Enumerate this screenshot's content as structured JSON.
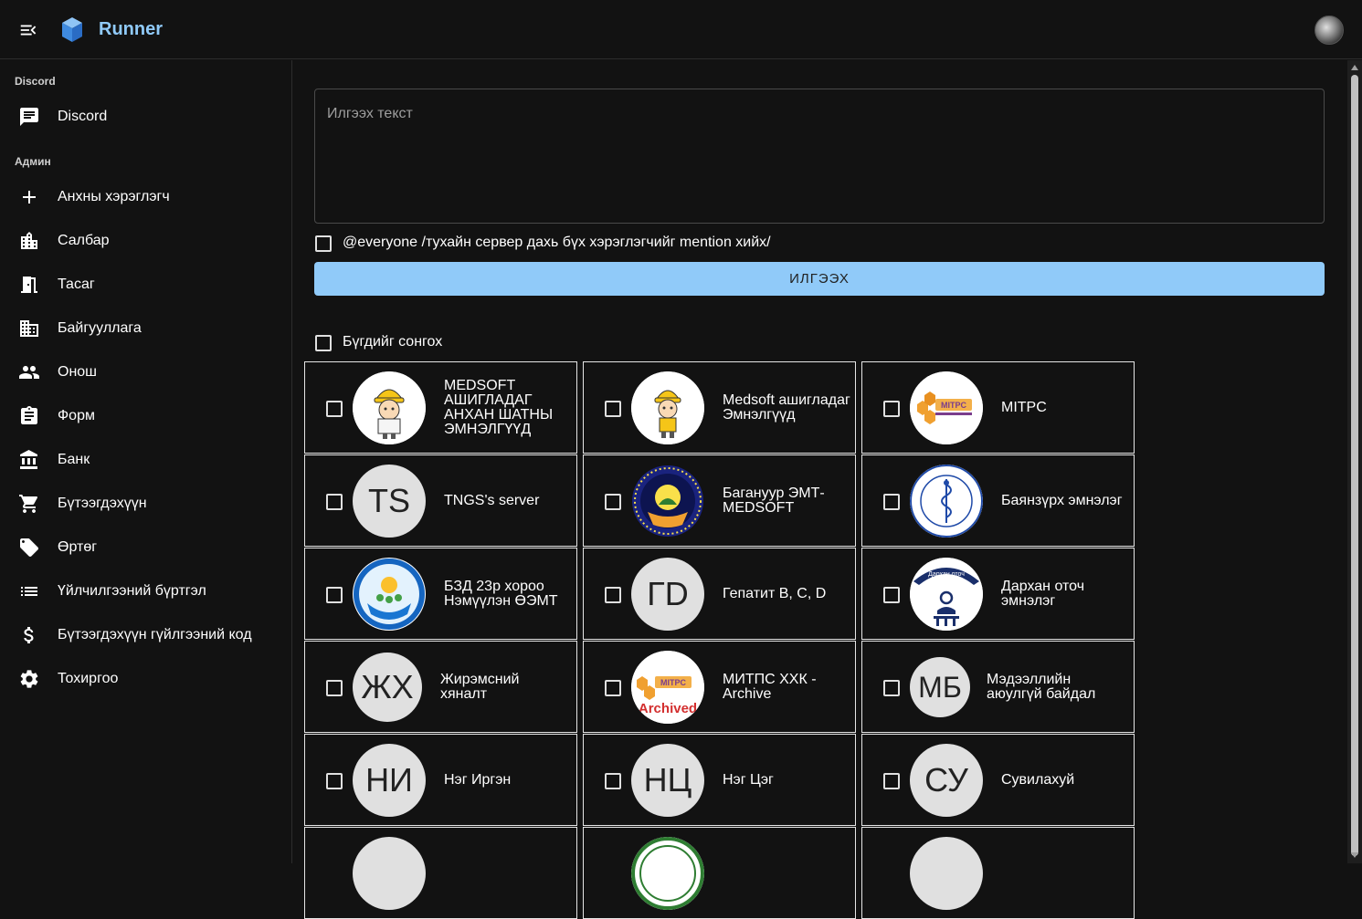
{
  "app": {
    "title": "Runner"
  },
  "sidebar": {
    "sections": [
      {
        "header": "Discord",
        "items": [
          {
            "label": "Discord",
            "icon": "chat-icon"
          }
        ]
      },
      {
        "header": "Админ",
        "items": [
          {
            "label": "Анхны хэрэглэгч",
            "icon": "plus-icon"
          },
          {
            "label": "Салбар",
            "icon": "building-icon"
          },
          {
            "label": "Тасаг",
            "icon": "door-icon"
          },
          {
            "label": "Байгууллага",
            "icon": "domain-icon"
          },
          {
            "label": "Онош",
            "icon": "people-icon"
          },
          {
            "label": "Форм",
            "icon": "clipboard-icon"
          },
          {
            "label": "Банк",
            "icon": "bank-icon"
          },
          {
            "label": "Бүтээгдэхүүн",
            "icon": "cart-icon"
          },
          {
            "label": "Өртөг",
            "icon": "tag-icon"
          },
          {
            "label": "Үйлчилгээний бүртгэл",
            "icon": "list-icon"
          },
          {
            "label": "Бүтээгдэхүүн гүйлгээний код",
            "icon": "dollar-icon"
          },
          {
            "label": "Тохиргоо",
            "icon": "gear-icon"
          }
        ]
      }
    ]
  },
  "main": {
    "message_placeholder": "Илгээх текст",
    "mention_label": "@everyone /тухайн сервер дахь бүх хэрэглэгчийг mention хийх/",
    "send_label": "ИЛГЭЭХ",
    "select_all_label": "Бүгдийг сонгох",
    "servers": [
      {
        "name": "MEDSOFT АШИГЛАДАГ АНХАН ШАТНЫ ЭМНЭЛГҮҮД",
        "avatar": "worker-logo"
      },
      {
        "name": "Medsoft ашигладаг Эмнэлгүүд",
        "avatar": "worker-logo"
      },
      {
        "name": "MITPC",
        "avatar": "mitpc-logo"
      },
      {
        "name": "TNGS's server",
        "initials": "TS"
      },
      {
        "name": "Багануур ЭМТ-MEDSOFT",
        "avatar": "baganuur-logo"
      },
      {
        "name": "Баянзүрх эмнэлэг",
        "avatar": "bayanzurkh-logo"
      },
      {
        "name": "БЗД 23р хороо Нэмүүлэн ӨЭМТ",
        "avatar": "bzd-logo"
      },
      {
        "name": "Гепатит B, C, D",
        "initials": "ГD"
      },
      {
        "name": "Дархан оточ эмнэлэг",
        "avatar": "darkhan-logo"
      },
      {
        "name": "Жирэмсний хяналт",
        "initials": "ЖХ"
      },
      {
        "name": "МИТПС ХХК - Archive",
        "avatar": "mitpc-archived-logo"
      },
      {
        "name": "Мэдээллийн аюулгүй байдал",
        "initials": "МБ"
      },
      {
        "name": "Нэг Иргэн",
        "initials": "НИ"
      },
      {
        "name": "Нэг Цэг",
        "initials": "НЦ"
      },
      {
        "name": "Сувилахуй",
        "initials": "СУ"
      }
    ]
  },
  "mitpc_logo_text": "MITPC",
  "archived_text": "Archived",
  "darkhan_logo_text": "Дархан оточ"
}
